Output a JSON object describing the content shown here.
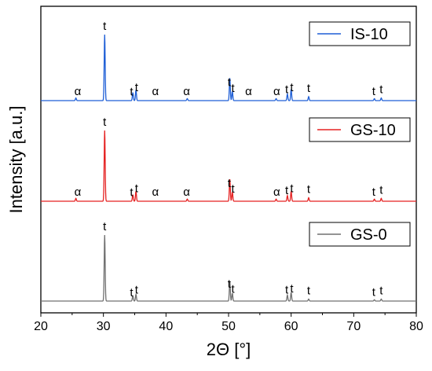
{
  "chart_data": {
    "type": "line",
    "xlabel": "2Θ [°]",
    "ylabel": "Intensity [a.u.]",
    "xlim": [
      20,
      80
    ],
    "xticks": [
      20,
      30,
      40,
      50,
      60,
      70,
      80
    ],
    "grid": false,
    "legend_placement": "top-right of each panel",
    "series": [
      {
        "name": "IS-10",
        "color": "#1f5fd6",
        "peaks": [
          {
            "x": 25.6,
            "h": 0.04
          },
          {
            "x": 30.2,
            "h": 1.0
          },
          {
            "x": 34.7,
            "h": 0.12
          },
          {
            "x": 35.2,
            "h": 0.16
          },
          {
            "x": 43.4,
            "h": 0.03
          },
          {
            "x": 50.2,
            "h": 0.34
          },
          {
            "x": 50.6,
            "h": 0.14
          },
          {
            "x": 57.6,
            "h": 0.03
          },
          {
            "x": 59.4,
            "h": 0.1
          },
          {
            "x": 60.0,
            "h": 0.17
          },
          {
            "x": 62.8,
            "h": 0.06
          },
          {
            "x": 73.3,
            "h": 0.03
          },
          {
            "x": 74.4,
            "h": 0.04
          }
        ],
        "labels": [
          {
            "text": "α",
            "x": 25.9
          },
          {
            "text": "t",
            "x": 30.2
          },
          {
            "text": "t",
            "x": 34.5
          },
          {
            "text": "t",
            "x": 35.3
          },
          {
            "text": "α",
            "x": 38.3
          },
          {
            "text": "α",
            "x": 43.3
          },
          {
            "text": "t",
            "x": 50.1
          },
          {
            "text": "t",
            "x": 50.7
          },
          {
            "text": "α",
            "x": 53.2
          },
          {
            "text": "α",
            "x": 57.7
          },
          {
            "text": "t",
            "x": 59.3
          },
          {
            "text": "t",
            "x": 60.1
          },
          {
            "text": "t",
            "x": 62.8
          },
          {
            "text": "t",
            "x": 73.2
          },
          {
            "text": "t",
            "x": 74.4
          }
        ]
      },
      {
        "name": "GS-10",
        "color": "#e52222",
        "peaks": [
          {
            "x": 25.6,
            "h": 0.04
          },
          {
            "x": 30.2,
            "h": 1.0
          },
          {
            "x": 34.7,
            "h": 0.09
          },
          {
            "x": 35.2,
            "h": 0.14
          },
          {
            "x": 43.4,
            "h": 0.03
          },
          {
            "x": 50.2,
            "h": 0.31
          },
          {
            "x": 50.6,
            "h": 0.13
          },
          {
            "x": 57.6,
            "h": 0.03
          },
          {
            "x": 59.4,
            "h": 0.08
          },
          {
            "x": 60.0,
            "h": 0.14
          },
          {
            "x": 62.8,
            "h": 0.05
          },
          {
            "x": 73.3,
            "h": 0.03
          },
          {
            "x": 74.4,
            "h": 0.04
          }
        ],
        "labels": [
          {
            "text": "α",
            "x": 25.9
          },
          {
            "text": "t",
            "x": 30.2
          },
          {
            "text": "t",
            "x": 34.5
          },
          {
            "text": "t",
            "x": 35.3
          },
          {
            "text": "α",
            "x": 38.3
          },
          {
            "text": "α",
            "x": 43.3
          },
          {
            "text": "t",
            "x": 50.1
          },
          {
            "text": "t",
            "x": 50.7
          },
          {
            "text": "α",
            "x": 57.7
          },
          {
            "text": "t",
            "x": 59.3
          },
          {
            "text": "t",
            "x": 60.1
          },
          {
            "text": "t",
            "x": 62.8
          },
          {
            "text": "t",
            "x": 73.2
          },
          {
            "text": "t",
            "x": 74.4
          }
        ]
      },
      {
        "name": "GS-0",
        "color": "#707070",
        "peaks": [
          {
            "x": 30.2,
            "h": 1.0
          },
          {
            "x": 34.7,
            "h": 0.08
          },
          {
            "x": 35.2,
            "h": 0.1
          },
          {
            "x": 50.2,
            "h": 0.3
          },
          {
            "x": 50.6,
            "h": 0.12
          },
          {
            "x": 59.4,
            "h": 0.09
          },
          {
            "x": 60.0,
            "h": 0.13
          },
          {
            "x": 62.8,
            "h": 0.03
          },
          {
            "x": 73.3,
            "h": 0.02
          },
          {
            "x": 74.4,
            "h": 0.03
          }
        ],
        "labels": [
          {
            "text": "t",
            "x": 30.2
          },
          {
            "text": "t",
            "x": 34.5
          },
          {
            "text": "t",
            "x": 35.3
          },
          {
            "text": "t",
            "x": 50.1
          },
          {
            "text": "t",
            "x": 50.7
          },
          {
            "text": "t",
            "x": 59.3
          },
          {
            "text": "t",
            "x": 60.1
          },
          {
            "text": "t",
            "x": 62.8
          },
          {
            "text": "t",
            "x": 73.2
          },
          {
            "text": "t",
            "x": 74.4
          }
        ]
      }
    ]
  }
}
